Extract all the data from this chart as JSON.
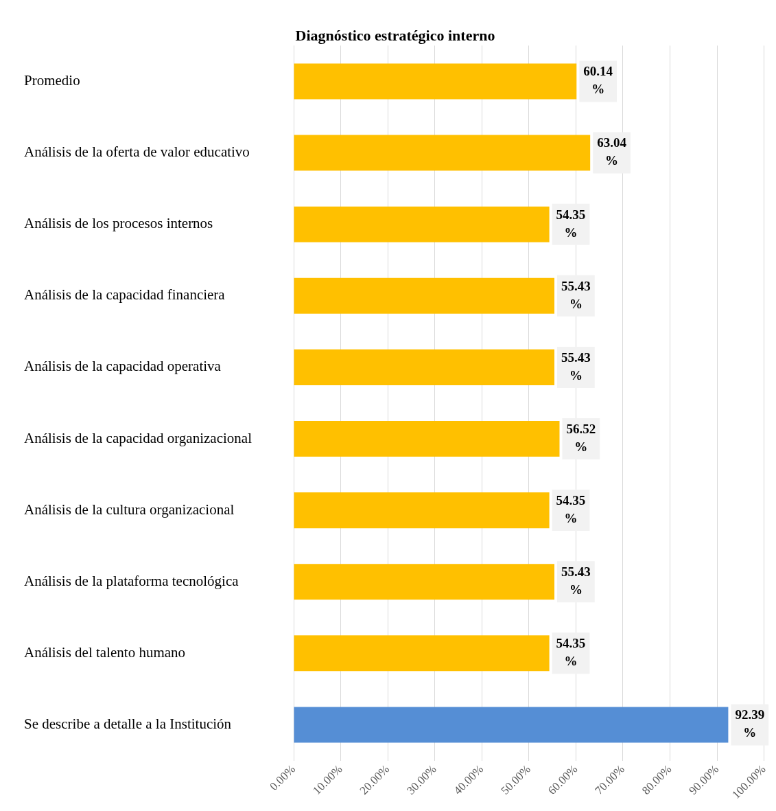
{
  "chart_data": {
    "type": "bar",
    "orientation": "horizontal",
    "title": "Diagnóstico estratégico interno",
    "categories": [
      "Promedio",
      "Análisis de la oferta de valor educativo",
      "Análisis de los procesos internos",
      "Análisis de la capacidad financiera",
      "Análisis de la capacidad operativa",
      "Análisis de la capacidad organizacional",
      "Análisis de la cultura organizacional",
      "Análisis de la plataforma tecnológica",
      "Análisis del talento humano",
      "Se describe a detalle a la Institución"
    ],
    "values": [
      60.14,
      63.04,
      54.35,
      55.43,
      55.43,
      56.52,
      54.35,
      55.43,
      54.35,
      92.39
    ],
    "value_labels": [
      "60.14 %",
      "63.04 %",
      "54.35 %",
      "55.43 %",
      "55.43 %",
      "56.52 %",
      "54.35 %",
      "55.43 %",
      "54.35 %",
      "92.39 %"
    ],
    "colors": [
      "#ffc000",
      "#ffc000",
      "#ffc000",
      "#ffc000",
      "#ffc000",
      "#ffc000",
      "#ffc000",
      "#ffc000",
      "#ffc000",
      "#558ed5"
    ],
    "xlim": [
      0,
      100
    ],
    "xticks": [
      {
        "value": 0,
        "label": "0.00%"
      },
      {
        "value": 10,
        "label": "10.00%"
      },
      {
        "value": 20,
        "label": "20.00%"
      },
      {
        "value": 30,
        "label": "30.00%"
      },
      {
        "value": 40,
        "label": "40.00%"
      },
      {
        "value": 50,
        "label": "50.00%"
      },
      {
        "value": 60,
        "label": "60.00%"
      },
      {
        "value": 70,
        "label": "70.00%"
      },
      {
        "value": 80,
        "label": "80.00%"
      },
      {
        "value": 90,
        "label": "90.00%"
      },
      {
        "value": 100,
        "label": "100.00%"
      }
    ],
    "grid": "x",
    "legend": false
  }
}
